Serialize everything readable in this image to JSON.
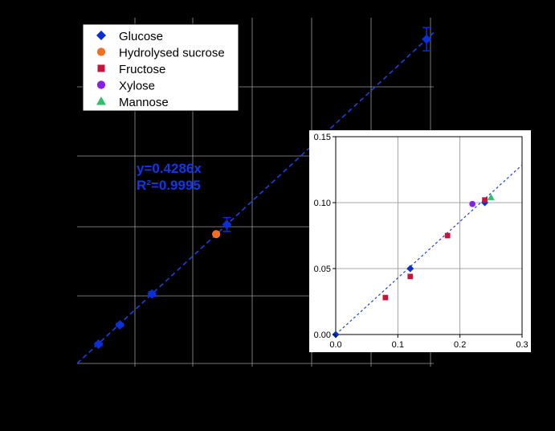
{
  "colors": {
    "background": "#000000",
    "grid": "#9a9a9a",
    "fit_line": "#1f3fe0",
    "glucose": "#0a2fd6",
    "hydrolysed_sucrose": "#f07020",
    "fructose": "#c8143c",
    "xylose": "#8a1ee6",
    "mannose": "#2ebf6a",
    "equation": "#1236e8"
  },
  "chart_data": [
    {
      "type": "scatter",
      "title": "",
      "xlabel": "",
      "ylabel": "",
      "xlim": [
        0,
        2.0
      ],
      "ylim": [
        0,
        0.9
      ],
      "grid": true,
      "legend": {
        "placement": "top-left",
        "entries": [
          {
            "label": "Glucose",
            "marker": "diamond",
            "color_key": "glucose"
          },
          {
            "label": "Hydrolysed sucrose",
            "marker": "circle",
            "color_key": "hydrolysed_sucrose"
          },
          {
            "label": "Fructose",
            "marker": "square",
            "color_key": "fructose"
          },
          {
            "label": "Xylose",
            "marker": "circle",
            "color_key": "xylose"
          },
          {
            "label": "Mannose",
            "marker": "triangle",
            "color_key": "mannose"
          }
        ]
      },
      "annotations": {
        "equation": "y=0.4286x",
        "r2": "R²=0.9995"
      },
      "fit": {
        "slope": 0.4286,
        "x_range": [
          0,
          2.0
        ]
      },
      "series": [
        {
          "name": "Glucose",
          "marker": "diamond",
          "color_key": "glucose",
          "points": [
            {
              "x": 0.12,
              "y": 0.05,
              "err": 0.004
            },
            {
              "x": 0.24,
              "y": 0.1,
              "err": 0.004
            },
            {
              "x": 0.42,
              "y": 0.18,
              "err": 0.006
            },
            {
              "x": 0.84,
              "y": 0.36,
              "err": 0.018
            },
            {
              "x": 1.96,
              "y": 0.84,
              "err": 0.03
            }
          ]
        },
        {
          "name": "Hydrolysed sucrose",
          "marker": "circle",
          "color_key": "hydrolysed_sucrose",
          "points": [
            {
              "x": 0.78,
              "y": 0.335
            }
          ]
        }
      ]
    },
    {
      "type": "scatter",
      "title": "",
      "xlabel": "",
      "ylabel": "",
      "xlim": [
        0,
        0.3
      ],
      "ylim": [
        0,
        0.15
      ],
      "grid": true,
      "x_ticks": [
        "0.0",
        "0.1",
        "0.2",
        "0.3"
      ],
      "y_ticks": [
        "0.00",
        "0.05",
        "0.10",
        "0.15"
      ],
      "fit": {
        "slope": 0.4286,
        "x_range": [
          0,
          0.3
        ]
      },
      "series": [
        {
          "name": "Glucose",
          "marker": "diamond",
          "color_key": "glucose",
          "points": [
            {
              "x": 0.0,
              "y": 0.0
            },
            {
              "x": 0.12,
              "y": 0.05
            },
            {
              "x": 0.24,
              "y": 0.1
            }
          ]
        },
        {
          "name": "Fructose",
          "marker": "square",
          "color_key": "fructose",
          "points": [
            {
              "x": 0.08,
              "y": 0.028
            },
            {
              "x": 0.12,
              "y": 0.044
            },
            {
              "x": 0.18,
              "y": 0.075
            },
            {
              "x": 0.24,
              "y": 0.102
            }
          ]
        },
        {
          "name": "Xylose",
          "marker": "circle",
          "color_key": "xylose",
          "points": [
            {
              "x": 0.22,
              "y": 0.099
            }
          ]
        },
        {
          "name": "Mannose",
          "marker": "triangle",
          "color_key": "mannose",
          "points": [
            {
              "x": 0.25,
              "y": 0.104
            }
          ]
        }
      ]
    }
  ]
}
